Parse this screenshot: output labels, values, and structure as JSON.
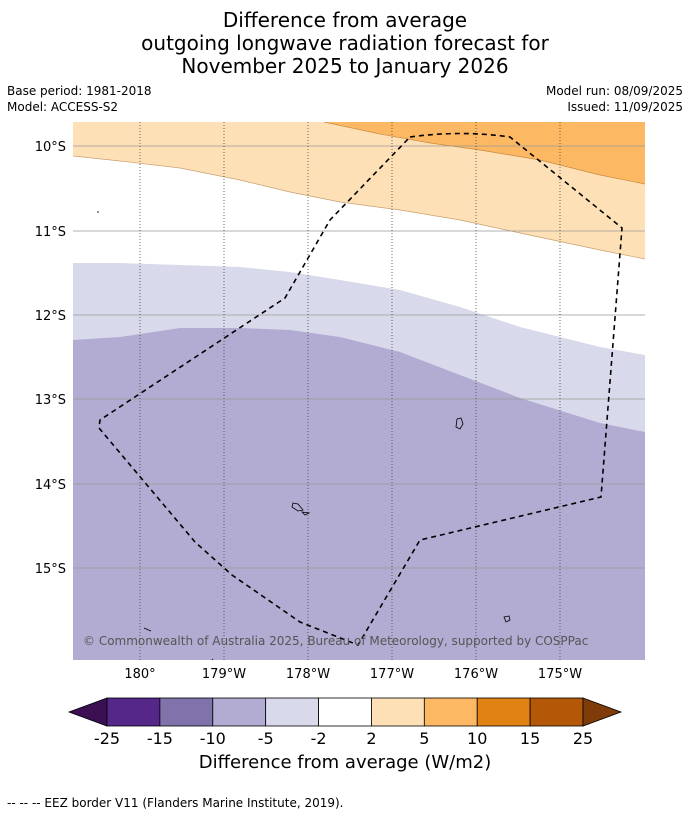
{
  "title": {
    "line1": "Difference from average",
    "line2": "outgoing longwave radiation forecast for",
    "line3": "November 2025 to January 2026"
  },
  "meta": {
    "base_period": "Base period: 1981-2018",
    "model": "Model: ACCESS-S2",
    "model_run": "Model run: 08/09/2025",
    "issued": "Issued: 11/09/2025"
  },
  "map": {
    "lat_labels": [
      "10°S",
      "11°S",
      "12°S",
      "13°S",
      "14°S",
      "15°S"
    ],
    "lon_labels": [
      "180°",
      "179°W",
      "178°W",
      "177°W",
      "176°W",
      "175°W"
    ],
    "copyright": "© Commonwealth of Australia 2025, Bureau of Meteorology, supported by COSPPac",
    "colors": {
      "band_orange": "#fdb863",
      "band_light_orange": "#fee0b6",
      "band_white": "#ffffff",
      "band_light_purple": "#d8daeb",
      "band_purple": "#b2abd2"
    }
  },
  "colorbar": {
    "ticks": [
      "-25",
      "-15",
      "-10",
      "-5",
      "-2",
      "2",
      "5",
      "10",
      "15",
      "25"
    ],
    "colors": [
      "#3b0f52",
      "#542788",
      "#8073ac",
      "#b2abd2",
      "#d8daeb",
      "#ffffff",
      "#fee0b6",
      "#fdb863",
      "#e08214",
      "#b35806",
      "#7f3b08"
    ],
    "label": "Difference from average (W/m2)"
  },
  "footnote": "--  --  -- EEZ border V11 (Flanders Marine Institute, 2019)."
}
